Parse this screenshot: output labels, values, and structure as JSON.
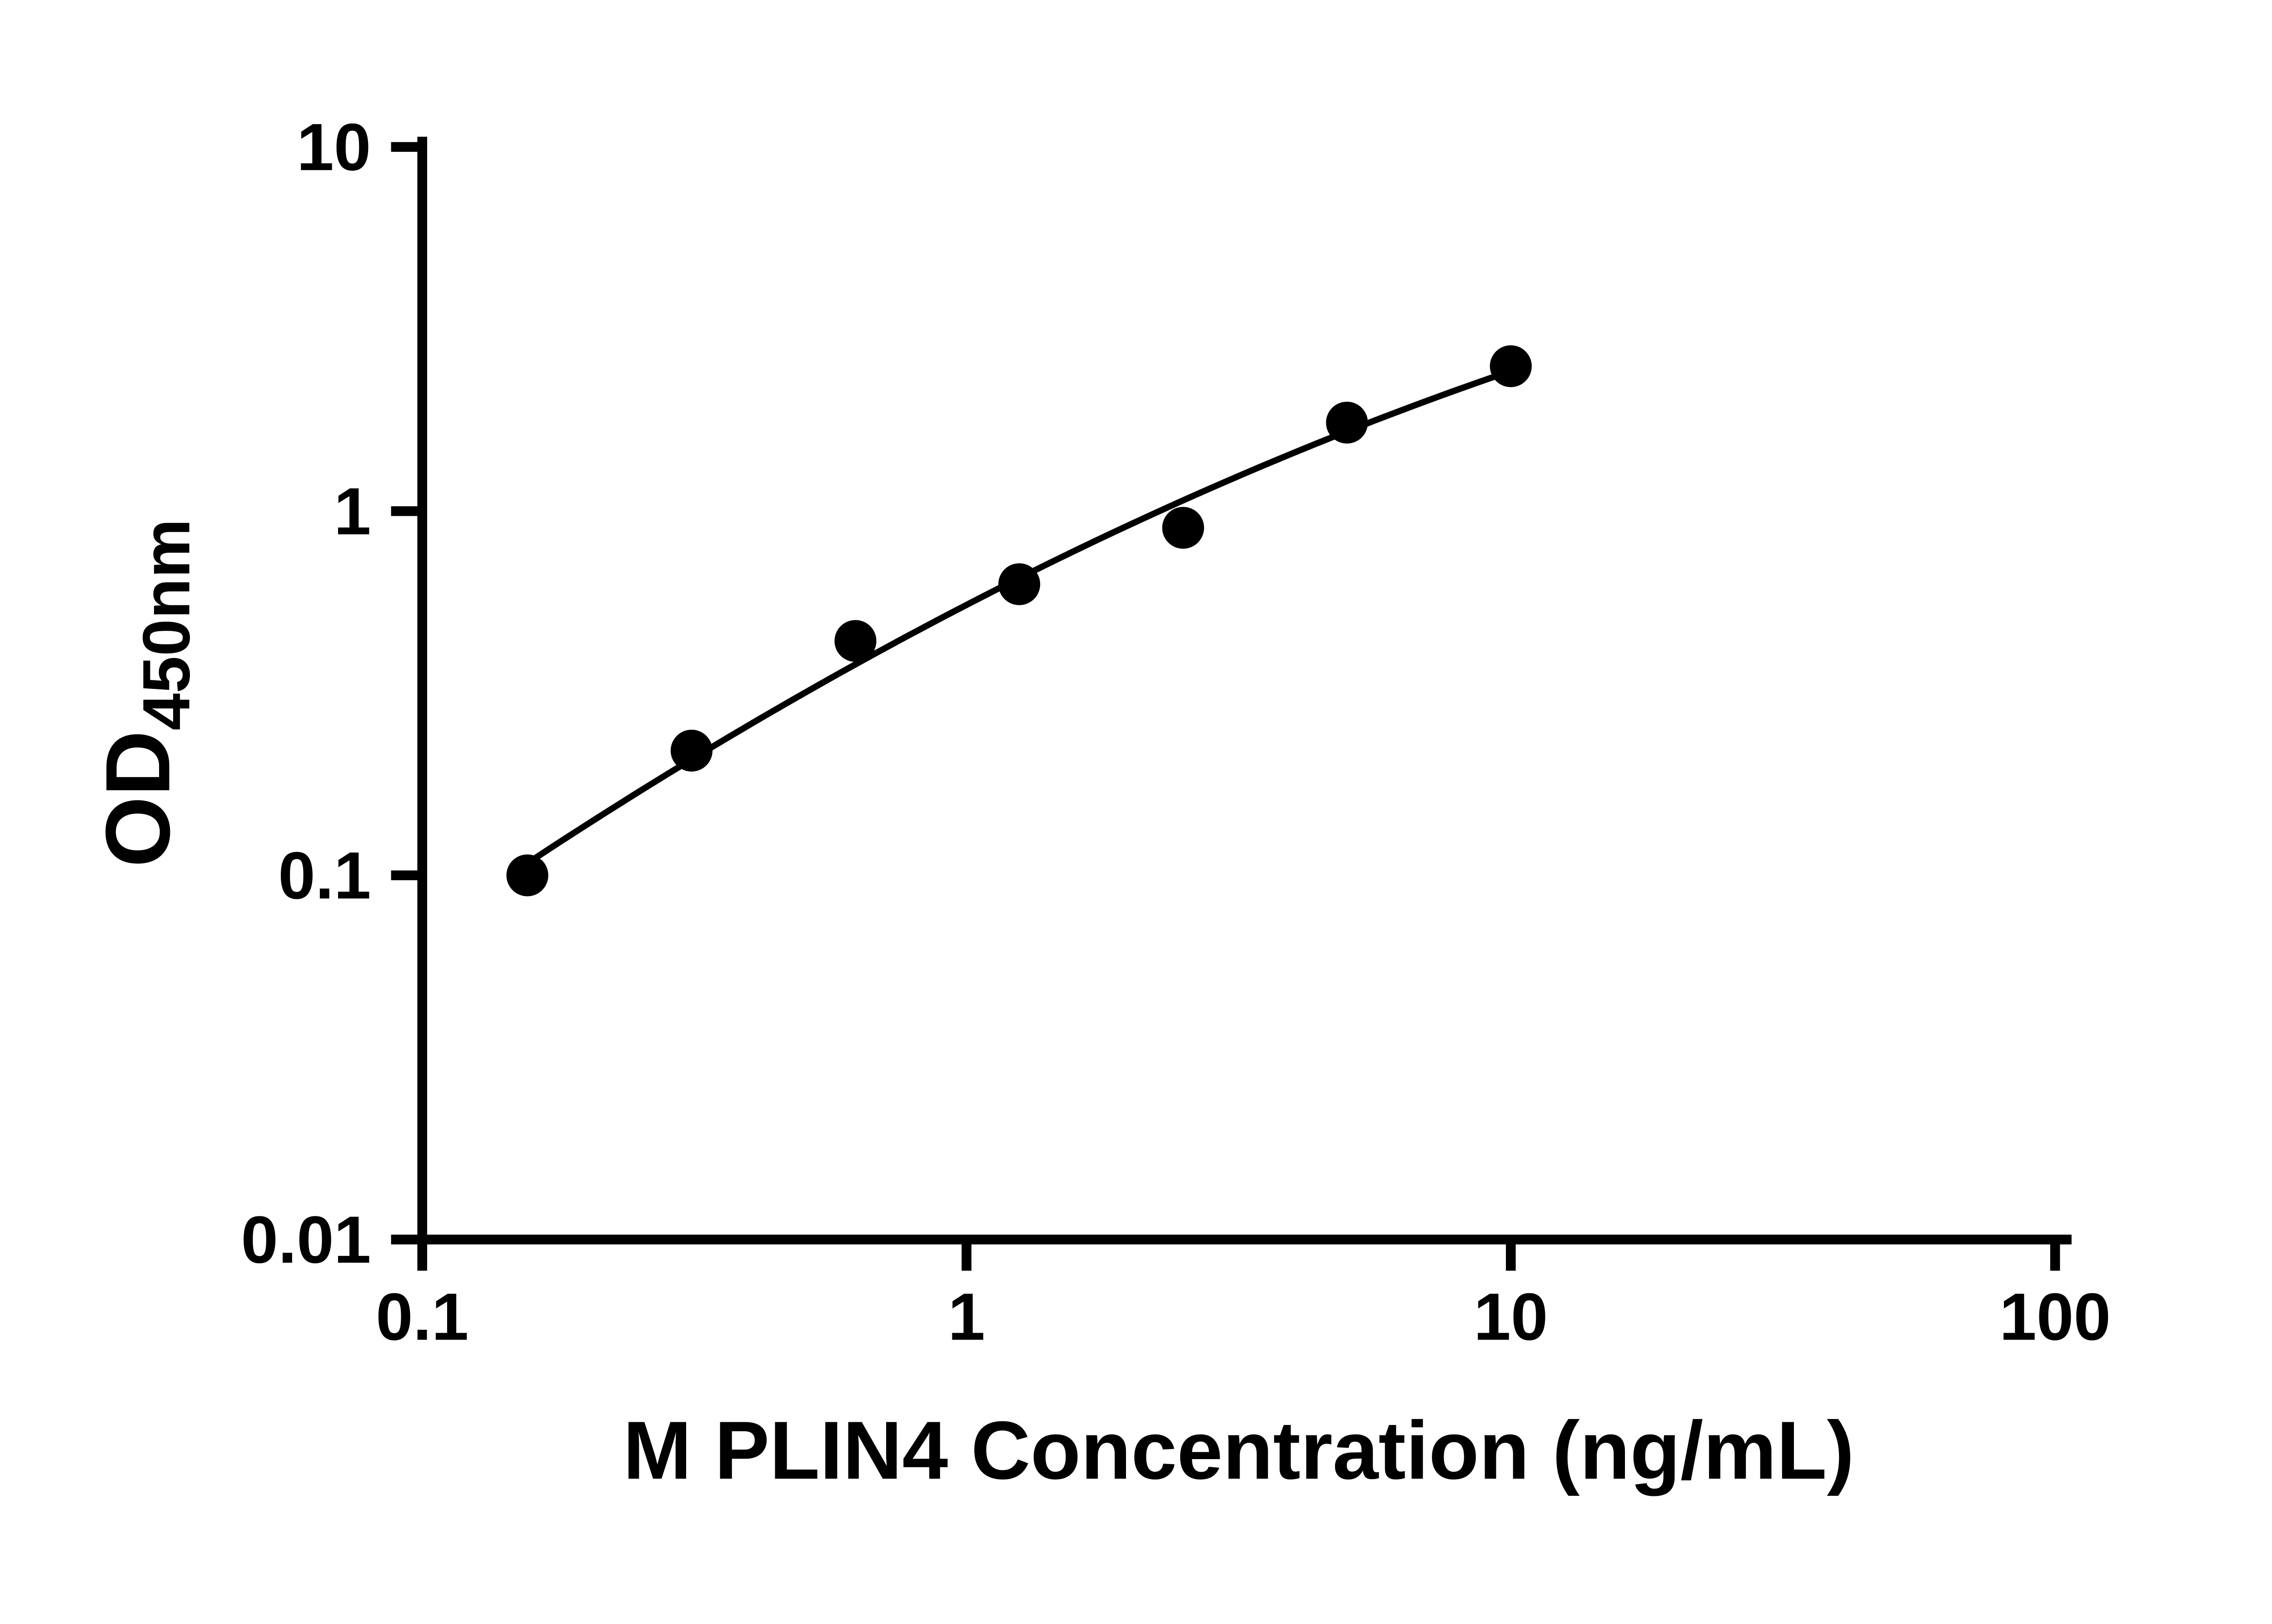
{
  "chart_data": {
    "type": "scatter",
    "title": "",
    "xlabel": "M PLIN4 Concentration (ng/mL)",
    "ylabel": "OD",
    "ylabel_sub": "450nm",
    "x_scale": "log",
    "y_scale": "log",
    "xlim": [
      0.1,
      100
    ],
    "ylim": [
      0.01,
      10
    ],
    "x_ticks": [
      0.1,
      1,
      10,
      100
    ],
    "x_tick_labels": [
      "0.1",
      "1",
      "10",
      "100"
    ],
    "y_ticks": [
      0.01,
      0.1,
      1,
      10
    ],
    "y_tick_labels": [
      "0.01",
      "0.1",
      "1",
      "10"
    ],
    "grid": false,
    "legend": null,
    "background_color": "#ffffff",
    "axis_color": "#000000",
    "marker_color": "#000000",
    "line_color": "#000000",
    "points": [
      {
        "x": 0.156,
        "y": 0.1
      },
      {
        "x": 0.3125,
        "y": 0.22
      },
      {
        "x": 0.625,
        "y": 0.44
      },
      {
        "x": 1.25,
        "y": 0.63
      },
      {
        "x": 2.5,
        "y": 0.9
      },
      {
        "x": 5.0,
        "y": 1.75
      },
      {
        "x": 10.0,
        "y": 2.5
      }
    ],
    "fit_curve": {
      "type": "quadratic-loglog-least-squares",
      "x_start": 0.16,
      "x_end": 10.0
    }
  }
}
